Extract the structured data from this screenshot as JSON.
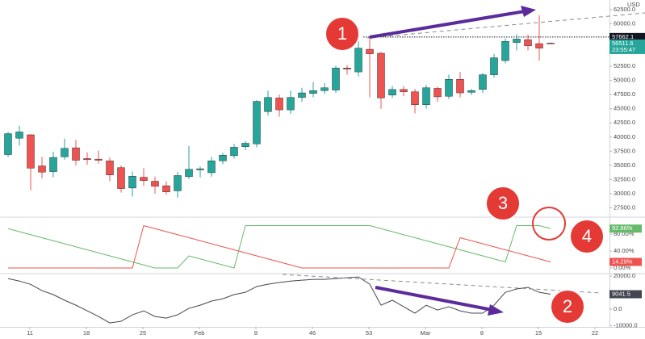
{
  "chart_data": [
    {
      "type": "candlestick",
      "currency": "USD",
      "x": [
        8.3,
        9.7,
        11.1,
        12.5,
        13.9,
        15.3,
        16.7,
        18.1,
        19.5,
        20.9,
        22.3,
        23.7,
        25.1,
        26.5,
        27.9,
        29.3,
        30.7,
        32.1,
        33.5,
        34.9,
        36.3,
        37.7,
        39.1,
        40.5,
        41.9,
        43.3,
        44.7,
        46.1,
        47.5,
        48.9,
        50.3,
        51.7,
        53.1,
        54.5,
        55.9,
        57.3,
        58.7,
        60.1,
        61.5,
        62.9,
        64.3,
        65.7,
        67.1,
        68.5,
        69.9,
        71.3,
        72.7,
        74.1,
        75.5
      ],
      "open": [
        36900,
        39800,
        40400,
        34900,
        33900,
        36500,
        38100,
        36200,
        36100,
        35800,
        34600,
        31000,
        32900,
        32200,
        31400,
        30500,
        33000,
        34200,
        33700,
        35800,
        36700,
        38300,
        38800,
        44500,
        46900,
        44800,
        47000,
        47700,
        48200,
        48300,
        52200,
        51500,
        55500,
        54800,
        47400,
        48400,
        48000,
        45700,
        48600,
        47200,
        50200,
        47900,
        48400,
        51000,
        53500,
        56700,
        57200,
        56500,
        56600
      ],
      "high": [
        40900,
        42000,
        40500,
        36500,
        37400,
        39700,
        39500,
        37300,
        37600,
        36400,
        35000,
        33900,
        34500,
        33000,
        32200,
        33800,
        38400,
        34800,
        36500,
        37200,
        38800,
        39300,
        46500,
        48200,
        47500,
        48200,
        48700,
        49700,
        49500,
        52600,
        52700,
        57700,
        57800,
        55000,
        49000,
        49000,
        48500,
        49200,
        48900,
        51000,
        51500,
        48500,
        51300,
        54700,
        57400,
        58100,
        58100,
        61500,
        56700
      ],
      "low": [
        36500,
        38500,
        30600,
        32700,
        32900,
        36000,
        35000,
        35100,
        35300,
        32200,
        30200,
        29500,
        31400,
        30000,
        29800,
        29300,
        32600,
        32900,
        33000,
        35200,
        36200,
        37700,
        38200,
        43800,
        43600,
        44100,
        46200,
        47000,
        47600,
        47800,
        51000,
        50700,
        47000,
        45000,
        46900,
        47200,
        44200,
        45000,
        46200,
        46700,
        47000,
        47400,
        47800,
        50500,
        53000,
        55300,
        55300,
        53500,
        56400
      ],
      "close": [
        40600,
        40900,
        34500,
        33800,
        36400,
        38000,
        35900,
        36000,
        35900,
        33300,
        30900,
        33100,
        32300,
        31300,
        30300,
        33200,
        34300,
        34400,
        35800,
        36800,
        38200,
        38900,
        46300,
        47000,
        44800,
        47000,
        47800,
        48200,
        48700,
        52200,
        52000,
        55700,
        54700,
        46900,
        48400,
        48000,
        45700,
        48700,
        47100,
        50200,
        47800,
        48200,
        51000,
        54000,
        56900,
        57300,
        56100,
        55700,
        56511.6
      ],
      "up_color": "#26a69a",
      "down_color": "#ef5350",
      "xlim": [
        7.3,
        82.8
      ],
      "ylim": [
        26000,
        64200
      ],
      "yticks": [
        {
          "value": 27500,
          "label": "27500.0"
        },
        {
          "value": 30000,
          "label": "30000.0"
        },
        {
          "value": 32500,
          "label": "32500.0"
        },
        {
          "value": 35000,
          "label": "35000.0"
        },
        {
          "value": 37500,
          "label": "37500.0"
        },
        {
          "value": 40000,
          "label": "40000.0"
        },
        {
          "value": 42500,
          "label": "42500.0"
        },
        {
          "value": 45000,
          "label": "45000.0"
        },
        {
          "value": 47500,
          "label": "47500.0"
        },
        {
          "value": 50000,
          "label": "50000.0"
        },
        {
          "value": 52500,
          "label": "52500.0"
        },
        {
          "value": 60000,
          "label": "60000.0"
        },
        {
          "value": 62500,
          "label": "62500.0"
        }
      ],
      "price_lines": [
        {
          "value": 57662.1,
          "color": "#131722",
          "style": "dotted"
        },
        {
          "value": 56511.6,
          "color": "#26a69a",
          "countdown": "23:55:47"
        }
      ]
    },
    {
      "type": "line",
      "x": [
        8.3,
        9.7,
        11.1,
        12.5,
        13.9,
        15.3,
        16.7,
        18.1,
        19.5,
        20.9,
        22.3,
        23.7,
        25.1,
        26.5,
        27.9,
        29.3,
        30.7,
        32.1,
        33.5,
        34.9,
        36.3,
        37.7,
        39.1,
        40.5,
        41.9,
        43.3,
        44.7,
        46.1,
        47.5,
        48.9,
        50.3,
        51.7,
        53.1,
        54.5,
        55.9,
        57.3,
        58.7,
        60.1,
        61.5,
        62.9,
        64.3,
        65.7,
        67.1,
        68.5,
        69.9,
        71.3,
        72.7,
        74.1,
        75.5
      ],
      "xlim": [
        7.3,
        82.8
      ],
      "ylim": [
        -11.4,
        118
      ],
      "yticks": [
        {
          "value": 80,
          "label": "80.00%"
        },
        {
          "value": 40,
          "label": "40.00%"
        },
        {
          "value": 0,
          "label": "0.00%"
        }
      ],
      "series": [
        {
          "color": "#66bb6a",
          "values": [
            92.86,
            85.71,
            78.57,
            71.43,
            64.29,
            57.14,
            50,
            42.86,
            35.71,
            28.57,
            21.43,
            14.29,
            7.14,
            0,
            0,
            0,
            28.57,
            21.43,
            14.29,
            7.14,
            0,
            100,
            100,
            100,
            100,
            100,
            100,
            100,
            100,
            100,
            100,
            100,
            100,
            92.86,
            85.71,
            78.57,
            71.43,
            64.29,
            57.14,
            50,
            42.86,
            35.71,
            28.57,
            21.43,
            14.29,
            100,
            100,
            100,
            92.86
          ],
          "value_labels": [
            null,
            null,
            null,
            null,
            null,
            null,
            null,
            null,
            null,
            null,
            null,
            null,
            null,
            null,
            null,
            null,
            null,
            null,
            null,
            null,
            null,
            null,
            null,
            null,
            null,
            null,
            null,
            null,
            null,
            null,
            null,
            null,
            null,
            null,
            null,
            null,
            null,
            null,
            null,
            null,
            null,
            null,
            null,
            null,
            null,
            null,
            null,
            null,
            "92.86%"
          ]
        },
        {
          "color": "#ef5350",
          "values": [
            0,
            0,
            0,
            0,
            0,
            0,
            0,
            0,
            0,
            0,
            0,
            0,
            100,
            92.86,
            85.71,
            78.57,
            71.43,
            64.29,
            57.14,
            50,
            42.86,
            35.71,
            28.57,
            21.43,
            14.29,
            7.14,
            0,
            0,
            0,
            0,
            0,
            0,
            0,
            0,
            0,
            0,
            0,
            0,
            0,
            0,
            71.43,
            64.29,
            57.14,
            50,
            42.86,
            35.71,
            28.57,
            21.43,
            14.29
          ],
          "value_labels": [
            null,
            null,
            null,
            null,
            null,
            null,
            null,
            null,
            null,
            null,
            null,
            null,
            null,
            null,
            null,
            null,
            null,
            null,
            null,
            null,
            null,
            null,
            null,
            null,
            null,
            null,
            null,
            null,
            null,
            null,
            null,
            null,
            null,
            null,
            null,
            null,
            null,
            null,
            null,
            null,
            null,
            null,
            null,
            null,
            null,
            null,
            null,
            null,
            "14.29%"
          ]
        }
      ]
    },
    {
      "type": "line",
      "x": [
        8.3,
        9.7,
        11.1,
        12.5,
        13.9,
        15.3,
        16.7,
        18.1,
        19.5,
        20.9,
        22.3,
        23.7,
        25.1,
        26.5,
        27.9,
        29.3,
        30.7,
        32.1,
        33.5,
        34.9,
        36.3,
        37.7,
        39.1,
        40.5,
        41.9,
        43.3,
        44.7,
        46.1,
        47.5,
        48.9,
        50.3,
        51.7,
        53.1,
        54.5,
        55.9,
        57.3,
        58.7,
        60.1,
        61.5,
        62.9,
        64.3,
        65.7,
        67.1,
        68.5,
        69.9,
        71.3,
        72.7,
        74.1,
        75.5
      ],
      "xlim": [
        7.3,
        82.8
      ],
      "ylim": [
        -10700,
        21000
      ],
      "yticks": [
        {
          "value": 20000,
          "label": "20000.0"
        },
        {
          "value": 0,
          "label": "0.0"
        },
        {
          "value": -10000,
          "label": "-10000.0"
        }
      ],
      "last_value_label": true,
      "xticks": [
        11,
        18,
        25,
        {
          "value": 32,
          "label": "Feb"
        },
        {
          "value": 39,
          "label": "8"
        },
        46,
        53,
        {
          "value": 60,
          "label": "Mar"
        },
        {
          "value": 67,
          "label": "8"
        },
        {
          "value": 74,
          "label": "15"
        },
        {
          "value": 81,
          "label": "22"
        }
      ],
      "series": [
        {
          "color": "#434651",
          "values": [
            18500,
            17000,
            15000,
            11200,
            8800,
            5400,
            2400,
            -1000,
            -4400,
            -8300,
            -7300,
            -3400,
            -1000,
            -4400,
            -5400,
            -3400,
            500,
            2400,
            4900,
            6300,
            8800,
            10200,
            13700,
            15100,
            16100,
            17000,
            17500,
            18000,
            18000,
            18500,
            19000,
            19500,
            15100,
            2400,
            5400,
            1500,
            -2400,
            2400,
            -500,
            1500,
            -1000,
            -2400,
            -2400,
            2400,
            10200,
            12200,
            13200,
            10200,
            9041.5
          ]
        }
      ]
    }
  ],
  "annotations": [
    {
      "label": "1"
    },
    {
      "label": "2"
    },
    {
      "label": "3"
    },
    {
      "label": "4"
    }
  ]
}
